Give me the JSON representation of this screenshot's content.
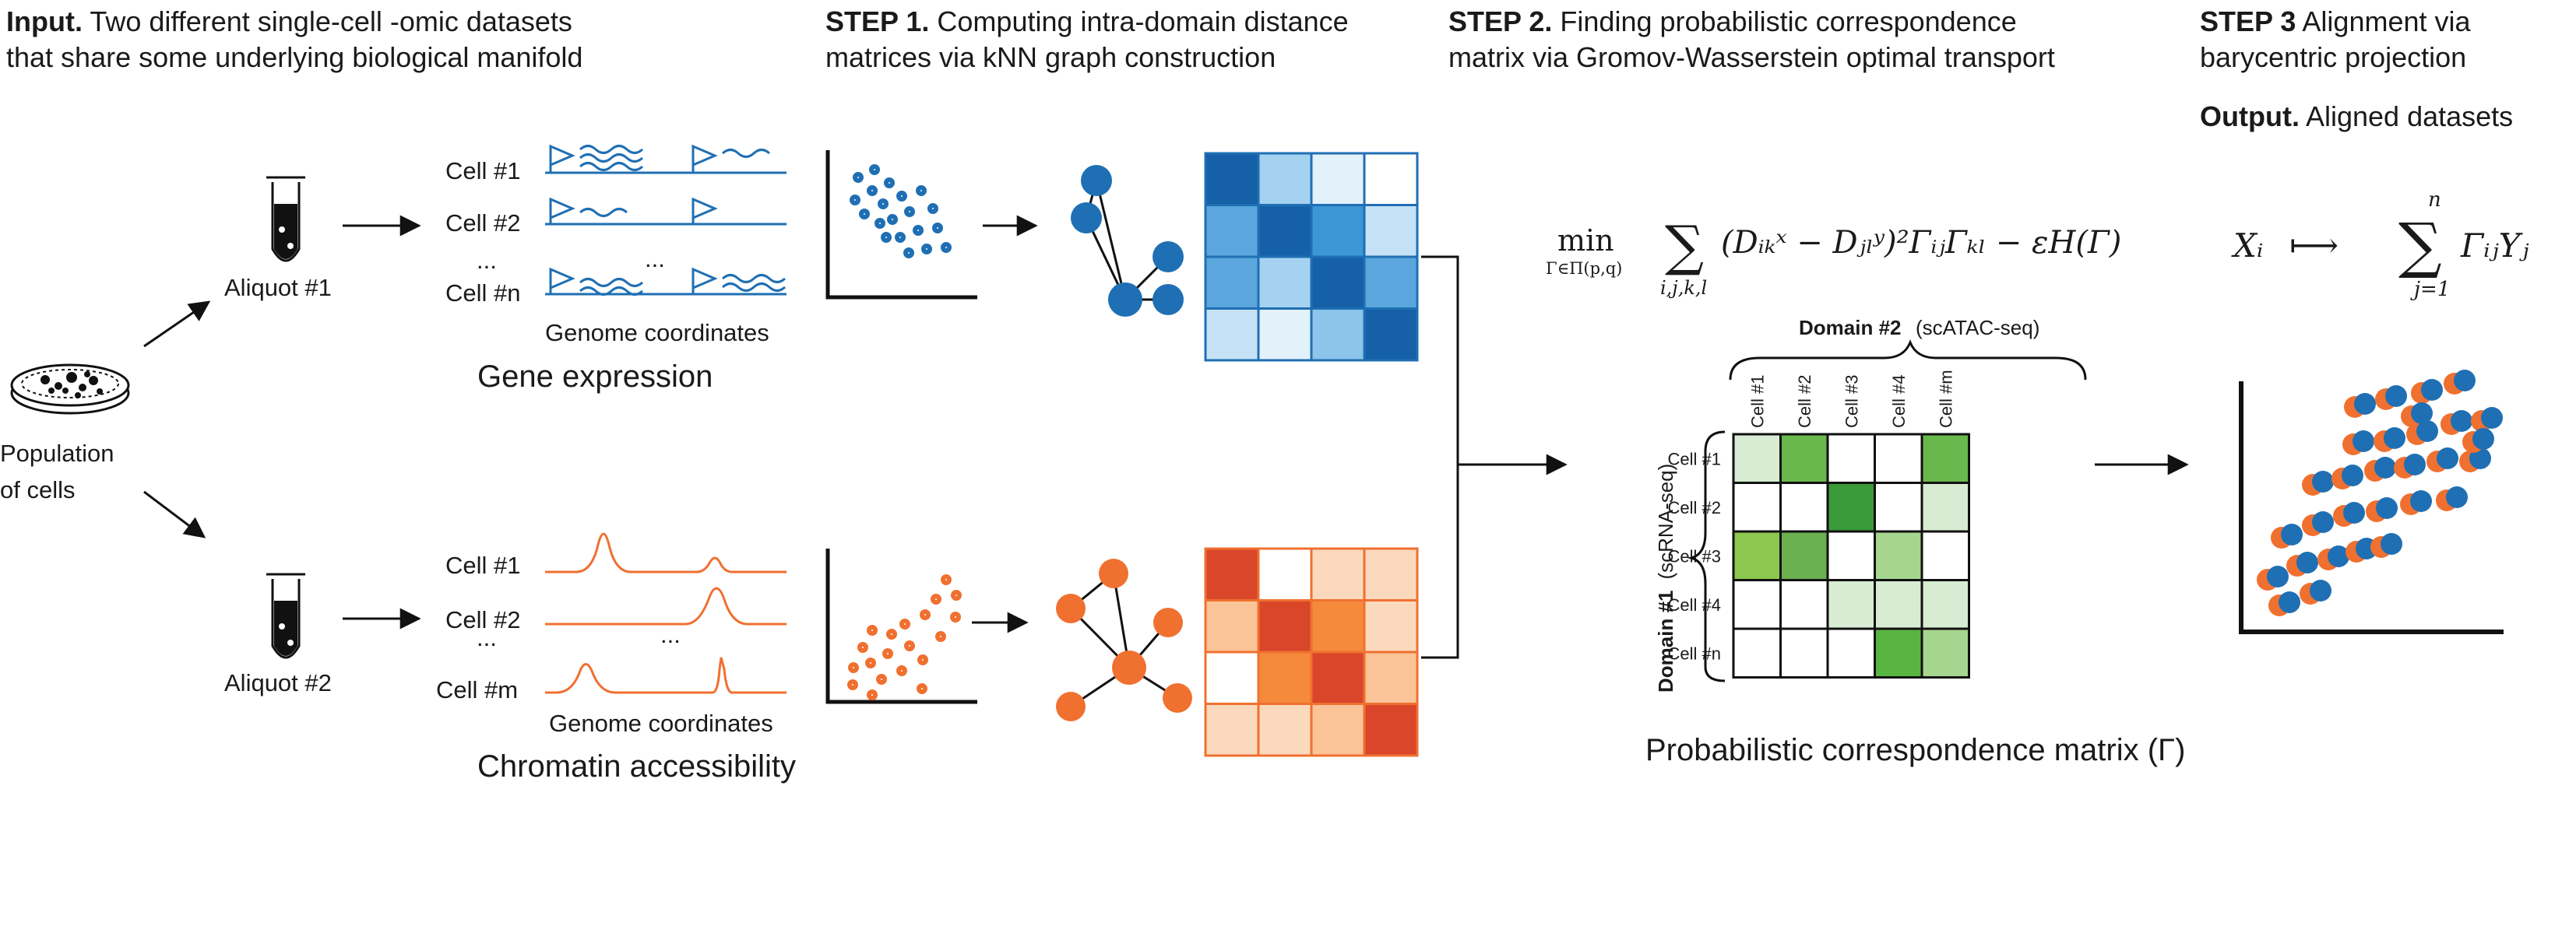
{
  "headers": {
    "input": {
      "bold": "Input.",
      "line1": " Two different single-cell -omic datasets",
      "line2": "that share some underlying biological manifold"
    },
    "step1": {
      "bold": "STEP 1.",
      "line1": " Computing intra-domain distance",
      "line2": "matrices via kNN graph construction"
    },
    "step2": {
      "bold": "STEP 2.",
      "line1": " Finding probabilistic correspondence",
      "line2": "matrix  via Gromov-Wasserstein optimal transport"
    },
    "step3": {
      "bold": "STEP 3",
      "line1": "  Alignment via",
      "line2": "barycentric projection"
    },
    "output": {
      "bold": "Output.",
      "line1": " Aligned datasets"
    }
  },
  "population": {
    "line1": "Population",
    "line2": "of cells"
  },
  "aliquots": {
    "a1": "Aliquot #1",
    "a2": "Aliquot #2"
  },
  "gene_expression": {
    "cells": [
      "Cell #1",
      "Cell #2",
      "...",
      "Cell #n"
    ],
    "axis": "Genome coordinates",
    "title": "Gene expression"
  },
  "chromatin": {
    "cells": [
      "Cell #1",
      "Cell #2",
      "...",
      "Cell #m"
    ],
    "axis": "Genome coordinates",
    "title": "Chromatin accessibility"
  },
  "dots": "...",
  "colors": {
    "blue": "#1f6fb4",
    "blue_dark": "#1660a8",
    "orange": "#f07030",
    "orange_dark": "#d9462a",
    "green_dark": "#3a9a3a",
    "green_mid": "#69b84d",
    "green_light": "#a6d58f",
    "green_pale": "#d7ecd2"
  },
  "blue_matrix": [
    [
      "#1660a8",
      "#a6d2f2",
      "#e3f1fb",
      "#ffffff"
    ],
    [
      "#5aa6dd",
      "#1660a8",
      "#3d96d6",
      "#c6e2f6"
    ],
    [
      "#5aa6dd",
      "#a6d2f2",
      "#1660a8",
      "#5aa6dd"
    ],
    [
      "#c6e2f6",
      "#e3f1fb",
      "#8cc4ea",
      "#1660a8"
    ]
  ],
  "orange_matrix": [
    [
      "#d9462a",
      "#ffffff",
      "#fbd9bd",
      "#fbd9bd"
    ],
    [
      "#fbc498",
      "#d9462a",
      "#f58a3c",
      "#fbd9bd"
    ],
    [
      "#ffffff",
      "#f58a3c",
      "#d9462a",
      "#fbc498"
    ],
    [
      "#fbd9bd",
      "#fbd9bd",
      "#fbc498",
      "#d9462a"
    ]
  ],
  "correspondence": {
    "domain2_bold": "Domain #2",
    "domain2_sub": "(scATAC-seq)",
    "domain1_bold": "Domain #1",
    "domain1_sub": "(scRNA-seq)",
    "col_labels": [
      "Cell #1",
      "Cell #2",
      "Cell #3",
      "Cell #4",
      "Cell #m"
    ],
    "row_labels": [
      "Cell #1",
      "Cell #2",
      "Cell #3",
      "Cell #4",
      "Cell #n"
    ],
    "grid": [
      [
        "#d7ecd2",
        "#69b84d",
        "#ffffff",
        "#ffffff",
        "#69b84d"
      ],
      [
        "#ffffff",
        "#ffffff",
        "#3a9a3a",
        "#ffffff",
        "#d7ecd2"
      ],
      [
        "#8cc84f",
        "#6bb050",
        "#ffffff",
        "#a6d58f",
        "#ffffff"
      ],
      [
        "#ffffff",
        "#ffffff",
        "#d7ecd2",
        "#d7ecd2",
        "#d7ecd2"
      ],
      [
        "#ffffff",
        "#ffffff",
        "#ffffff",
        "#5ab440",
        "#a6d58f"
      ]
    ],
    "title": "Probabilistic correspondence matrix (Γ)"
  },
  "formula_step2": {
    "min": "min",
    "min_sub": "Γ∈Π(p,q)",
    "sigma": "∑",
    "sum_sub": "i,j,k,l",
    "body": "(Dᵢₖˣ − Dⱼₗʸ)²ΓᵢⱼΓₖₗ − εH(Γ)"
  },
  "formula_step3": {
    "lhs": "Xᵢ",
    "arrow": "⟼",
    "sigma": "∑",
    "sup": "n",
    "sub": "j=1",
    "rhs": "ΓᵢⱼYⱼ"
  }
}
